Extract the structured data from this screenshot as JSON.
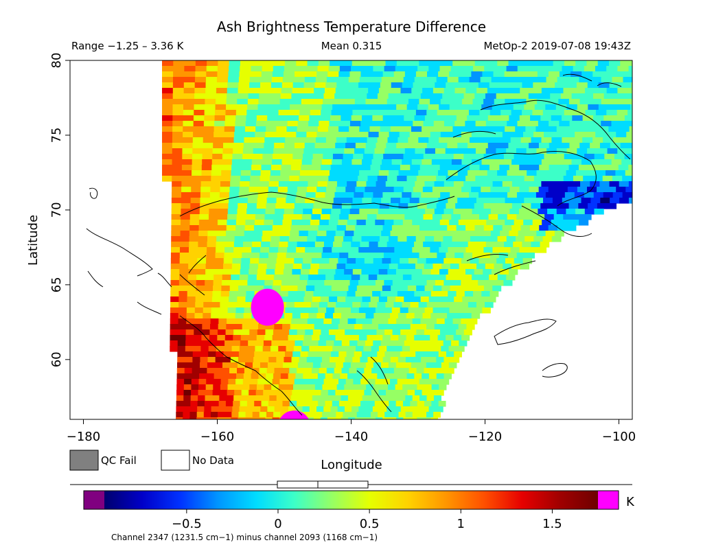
{
  "chart_data": {
    "type": "heatmap",
    "title": "Ash Brightness Temperature Difference",
    "range_text": "Range −1.25 – 3.36 K",
    "mean_text": "Mean 0.315",
    "source_text": "MetOp-2 2019-07-08 19:43Z",
    "xlabel": "Longitude",
    "ylabel": "Latitude",
    "xlim": [
      -182,
      -98
    ],
    "ylim": [
      56,
      80
    ],
    "x_ticks": [
      -180,
      -160,
      -140,
      -120,
      -100
    ],
    "x_tick_labels": [
      "−180",
      "−160",
      "−140",
      "−120",
      "−100"
    ],
    "y_ticks": [
      60,
      65,
      70,
      75,
      80
    ],
    "y_tick_labels": [
      "60",
      "65",
      "70",
      "75",
      "80"
    ],
    "legend": [
      {
        "label": "QC Fail",
        "color": "#808080"
      },
      {
        "label": "No Data",
        "color": "#ffffff"
      }
    ],
    "colorbar": {
      "min": -0.95,
      "max": 1.75,
      "unit": "K",
      "ticks": [
        -0.5,
        0,
        0.5,
        1,
        1.5
      ],
      "tick_labels": [
        "−0.5",
        "0",
        "0.5",
        "1",
        "1.5"
      ],
      "under_color": "#800080",
      "over_color": "#ff00ff",
      "colors": [
        "#00006e",
        "#0000c8",
        "#0032ff",
        "#0096ff",
        "#00dcff",
        "#3cffc8",
        "#96ff64",
        "#e6ff00",
        "#ffd200",
        "#ff9600",
        "#ff5000",
        "#e60000",
        "#a00000",
        "#6e0000"
      ],
      "caption": "Channel 2347 (1231.5 cm−1) minus channel 2093 (1168 cm−1)"
    },
    "hotspots": [
      {
        "name": "ash plume (north)",
        "lon": -152.5,
        "lat": 63.5,
        "value_class": "over"
      },
      {
        "name": "ash plume (south)",
        "lon": -148.5,
        "lat": 56.5,
        "value_class": "over"
      }
    ]
  }
}
